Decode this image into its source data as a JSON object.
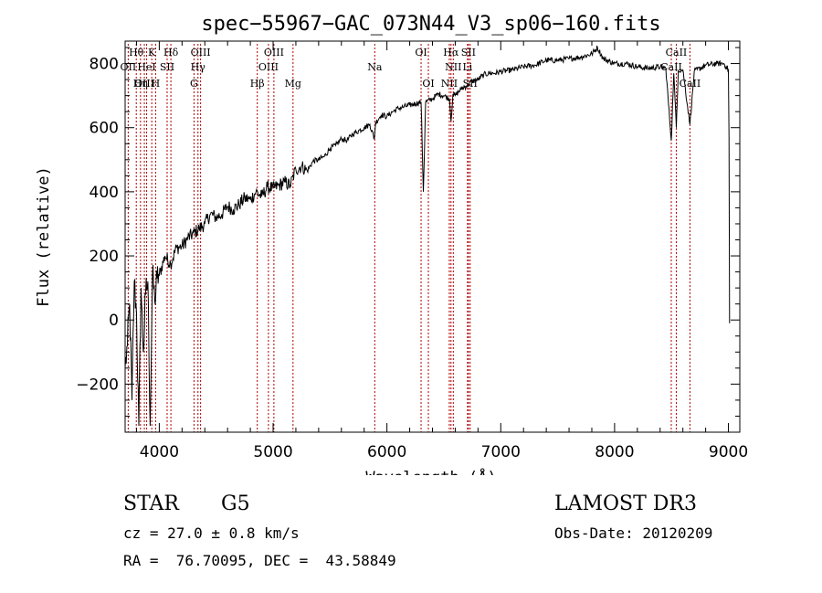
{
  "chart_data": {
    "type": "line",
    "title": "spec−55967−GAC_073N44_V3_sp06−160.fits",
    "xlabel": "Wavelength (Å)",
    "ylabel": "Flux (relative)",
    "xlim": [
      3700,
      9100
    ],
    "ylim": [
      -350,
      870
    ],
    "x_ticks": [
      4000,
      5000,
      6000,
      7000,
      8000,
      9000
    ],
    "y_ticks": [
      -200,
      0,
      200,
      400,
      600,
      800
    ],
    "grid": false,
    "series": [
      {
        "name": "flux",
        "x": [
          3700,
          3720,
          3740,
          3760,
          3780,
          3800,
          3820,
          3840,
          3860,
          3880,
          3900,
          3920,
          3940,
          3960,
          3980,
          4000,
          4050,
          4100,
          4150,
          4200,
          4250,
          4300,
          4350,
          4400,
          4450,
          4500,
          4550,
          4600,
          4650,
          4700,
          4750,
          4800,
          4850,
          4900,
          4950,
          5000,
          5050,
          5100,
          5150,
          5200,
          5250,
          5300,
          5350,
          5400,
          5450,
          5500,
          5550,
          5600,
          5650,
          5700,
          5750,
          5800,
          5850,
          5890,
          5900,
          5950,
          6000,
          6050,
          6100,
          6150,
          6200,
          6250,
          6300,
          6320,
          6340,
          6400,
          6450,
          6500,
          6550,
          6563,
          6580,
          6600,
          6650,
          6700,
          6750,
          6800,
          6850,
          6900,
          6950,
          7000,
          7100,
          7200,
          7300,
          7400,
          7500,
          7600,
          7700,
          7800,
          7850,
          7900,
          8000,
          8100,
          8200,
          8300,
          8400,
          8450,
          8498,
          8520,
          8542,
          8560,
          8600,
          8662,
          8700,
          8800,
          8900,
          8960,
          8980,
          9000,
          9005,
          9010
        ],
        "y": [
          -150,
          -80,
          50,
          -250,
          120,
          20,
          -330,
          100,
          -100,
          80,
          120,
          -330,
          140,
          60,
          130,
          140,
          200,
          175,
          225,
          230,
          255,
          270,
          285,
          300,
          330,
          320,
          330,
          355,
          345,
          360,
          380,
          375,
          400,
          385,
          415,
          410,
          420,
          430,
          420,
          470,
          480,
          465,
          495,
          500,
          510,
          535,
          545,
          565,
          560,
          580,
          590,
          600,
          610,
          565,
          615,
          640,
          635,
          650,
          660,
          665,
          670,
          675,
          680,
          400,
          680,
          690,
          705,
          700,
          690,
          620,
          705,
          700,
          720,
          730,
          745,
          750,
          765,
          770,
          770,
          775,
          780,
          790,
          795,
          810,
          810,
          815,
          820,
          830,
          850,
          815,
          800,
          800,
          790,
          785,
          790,
          785,
          560,
          770,
          600,
          780,
          780,
          610,
          775,
          795,
          800,
          800,
          790,
          780,
          570,
          -10
        ]
      }
    ],
    "lines": [
      {
        "name": "Hθ",
        "x": 3798,
        "row": 1
      },
      {
        "name": "OII",
        "x": 3727,
        "row": 2
      },
      {
        "name": "OIII",
        "x": 3869,
        "row": 3
      },
      {
        "name": "K",
        "x": 3934,
        "row": 1
      },
      {
        "name": "HeI",
        "x": 3889,
        "row": 2
      },
      {
        "name": "Hη",
        "x": 3835,
        "row": 3
      },
      {
        "name": "SII",
        "x": 4069,
        "row": 2
      },
      {
        "name": "H",
        "x": 3968,
        "row": 3
      },
      {
        "name": "Hδ",
        "x": 4102,
        "row": 1
      },
      {
        "name": "OIII",
        "x": 4363,
        "row": 1
      },
      {
        "name": "Hγ",
        "x": 4340,
        "row": 2
      },
      {
        "name": "G",
        "x": 4305,
        "row": 3
      },
      {
        "name": "Hβ",
        "x": 4861,
        "row": 3
      },
      {
        "name": "OIII",
        "x": 5007,
        "row": 1
      },
      {
        "name": "OIII",
        "x": 4959,
        "row": 2
      },
      {
        "name": "Mg",
        "x": 5175,
        "row": 3
      },
      {
        "name": "Na",
        "x": 5893,
        "row": 2
      },
      {
        "name": "OI",
        "x": 6300,
        "row": 1
      },
      {
        "name": "OI",
        "x": 6364,
        "row": 3
      },
      {
        "name": "Hα",
        "x": 6563,
        "row": 1
      },
      {
        "name": "NII",
        "x": 6583,
        "row": 2
      },
      {
        "name": "NII",
        "x": 6548,
        "row": 3
      },
      {
        "name": "SII",
        "x": 6716,
        "row": 1
      },
      {
        "name": "Li",
        "x": 6708,
        "row": 2
      },
      {
        "name": "SII",
        "x": 6731,
        "row": 3
      },
      {
        "name": "CaII",
        "x": 8542,
        "row": 1
      },
      {
        "name": "CaII",
        "x": 8498,
        "row": 2
      },
      {
        "name": "CaII",
        "x": 8662,
        "row": 3
      }
    ]
  },
  "info": {
    "class_label": "STAR",
    "subclass": "G5",
    "survey": "LAMOST DR3",
    "redshift": "cz = 27.0 ± 0.8 km/s",
    "obs_date": "Obs-Date: 20120209",
    "coords": "RA =  76.70095, DEC =  43.58849"
  }
}
